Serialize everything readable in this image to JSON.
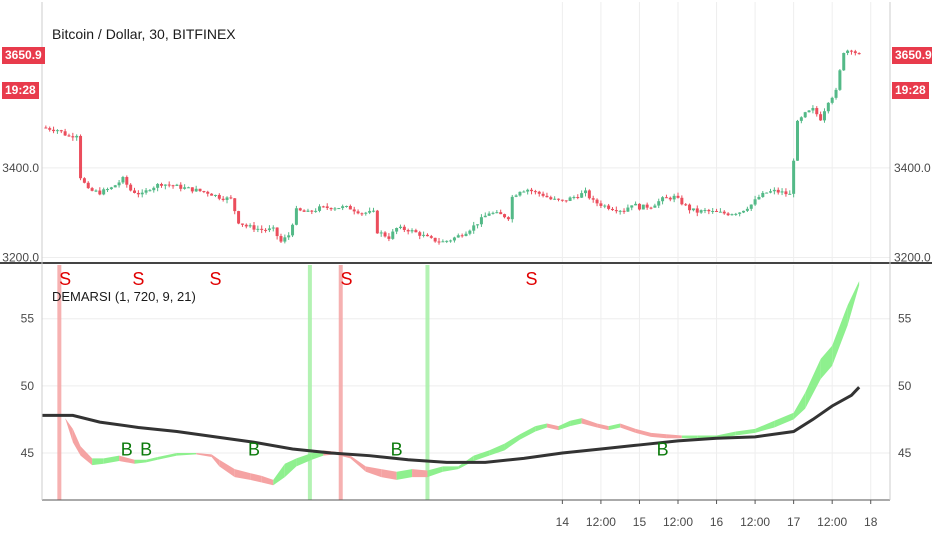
{
  "chart_data": [
    {
      "type": "candlestick",
      "title": "Bitcoin / Dollar, 30, BITFINEX",
      "y_ticks": [
        "3200.0",
        "3400.0"
      ],
      "ylim": [
        3190,
        3770
      ],
      "last_price": "3650.9",
      "countdown": "19:28",
      "x_ticks": [
        {
          "x": 13.5,
          "label": "14"
        },
        {
          "x": 14.5,
          "label": "12:00"
        },
        {
          "x": 15.5,
          "label": "15"
        },
        {
          "x": 16.5,
          "label": "12:00"
        },
        {
          "x": 17.5,
          "label": "16"
        },
        {
          "x": 18.5,
          "label": "12:00"
        },
        {
          "x": 19.5,
          "label": "17"
        },
        {
          "x": 20.5,
          "label": "12:00"
        },
        {
          "x": 21.5,
          "label": "18"
        }
      ],
      "close_path": [
        [
          0.0,
          3490
        ],
        [
          0.4,
          3485
        ],
        [
          0.7,
          3470
        ],
        [
          0.9,
          3475
        ],
        [
          1.0,
          3380
        ],
        [
          1.2,
          3350
        ],
        [
          1.5,
          3345
        ],
        [
          1.8,
          3355
        ],
        [
          2.1,
          3375
        ],
        [
          2.3,
          3350
        ],
        [
          2.6,
          3340
        ],
        [
          2.8,
          3355
        ],
        [
          3.1,
          3365
        ],
        [
          3.4,
          3360
        ],
        [
          3.7,
          3355
        ],
        [
          4.0,
          3350
        ],
        [
          4.3,
          3345
        ],
        [
          4.6,
          3335
        ],
        [
          4.9,
          3330
        ],
        [
          5.1,
          3280
        ],
        [
          5.3,
          3270
        ],
        [
          5.7,
          3262
        ],
        [
          6.0,
          3262
        ],
        [
          6.2,
          3235
        ],
        [
          6.4,
          3250
        ],
        [
          6.6,
          3305
        ],
        [
          6.9,
          3300
        ],
        [
          7.2,
          3310
        ],
        [
          7.5,
          3312
        ],
        [
          7.8,
          3312
        ],
        [
          8.0,
          3310
        ],
        [
          8.3,
          3300
        ],
        [
          8.6,
          3300
        ],
        [
          8.7,
          3258
        ],
        [
          9.0,
          3245
        ],
        [
          9.2,
          3265
        ],
        [
          9.5,
          3262
        ],
        [
          9.8,
          3252
        ],
        [
          10.1,
          3240
        ],
        [
          10.4,
          3235
        ],
        [
          10.6,
          3240
        ],
        [
          10.8,
          3248
        ],
        [
          11.0,
          3258
        ],
        [
          11.2,
          3270
        ],
        [
          11.4,
          3285
        ],
        [
          11.6,
          3300
        ],
        [
          11.9,
          3295
        ],
        [
          12.1,
          3290
        ],
        [
          12.2,
          3335
        ],
        [
          12.4,
          3350
        ],
        [
          12.6,
          3352
        ],
        [
          12.8,
          3345
        ],
        [
          13.0,
          3340
        ],
        [
          13.2,
          3330
        ],
        [
          13.5,
          3325
        ],
        [
          13.8,
          3335
        ],
        [
          14.1,
          3345
        ],
        [
          14.3,
          3325
        ],
        [
          14.6,
          3315
        ],
        [
          14.8,
          3310
        ],
        [
          15.1,
          3305
        ],
        [
          15.3,
          3320
        ],
        [
          15.5,
          3312
        ],
        [
          15.8,
          3315
        ],
        [
          16.1,
          3330
        ],
        [
          16.4,
          3335
        ],
        [
          16.6,
          3322
        ],
        [
          16.8,
          3308
        ],
        [
          17.0,
          3302
        ],
        [
          17.2,
          3304
        ],
        [
          17.5,
          3300
        ],
        [
          17.8,
          3298
        ],
        [
          18.1,
          3302
        ],
        [
          18.4,
          3318
        ],
        [
          18.6,
          3335
        ],
        [
          18.8,
          3345
        ],
        [
          19.0,
          3348
        ],
        [
          19.2,
          3345
        ],
        [
          19.4,
          3340
        ],
        [
          19.6,
          3500
        ],
        [
          19.8,
          3520
        ],
        [
          20.0,
          3530
        ],
        [
          20.2,
          3510
        ],
        [
          20.4,
          3550
        ],
        [
          20.6,
          3570
        ],
        [
          20.8,
          3660
        ],
        [
          21.0,
          3665
        ],
        [
          21.2,
          3650
        ]
      ]
    },
    {
      "type": "line",
      "title": "DEMARSI (1, 720, 9, 21)",
      "y_ticks": [
        "45",
        "50",
        "55"
      ],
      "ylim": [
        41.5,
        59
      ],
      "baseline": [
        [
          0.0,
          47.8
        ],
        [
          0.8,
          47.8
        ],
        [
          1.5,
          47.3
        ],
        [
          2.5,
          46.9
        ],
        [
          3.5,
          46.6
        ],
        [
          4.5,
          46.2
        ],
        [
          5.5,
          45.8
        ],
        [
          6.5,
          45.3
        ],
        [
          7.5,
          45.0
        ],
        [
          8.5,
          44.8
        ],
        [
          9.5,
          44.5
        ],
        [
          10.5,
          44.3
        ],
        [
          11.5,
          44.3
        ],
        [
          12.5,
          44.6
        ],
        [
          13.5,
          45.0
        ],
        [
          14.5,
          45.3
        ],
        [
          15.5,
          45.6
        ],
        [
          16.5,
          45.9
        ],
        [
          17.5,
          46.1
        ],
        [
          18.5,
          46.2
        ],
        [
          19.5,
          46.6
        ],
        [
          20.0,
          47.5
        ],
        [
          20.5,
          48.5
        ],
        [
          21.0,
          49.3
        ],
        [
          21.2,
          49.9
        ]
      ],
      "band_upper": [
        [
          0.0,
          47.7
        ],
        [
          0.6,
          47.6
        ],
        [
          0.8,
          46.8
        ],
        [
          1.0,
          45.5
        ],
        [
          1.3,
          44.6
        ],
        [
          1.6,
          44.6
        ],
        [
          2.0,
          44.8
        ],
        [
          2.4,
          44.5
        ],
        [
          2.7,
          44.5
        ],
        [
          3.0,
          44.7
        ],
        [
          3.5,
          45.0
        ],
        [
          4.0,
          45.0
        ],
        [
          4.4,
          44.9
        ],
        [
          4.6,
          44.5
        ],
        [
          5.0,
          43.8
        ],
        [
          5.4,
          43.5
        ],
        [
          5.7,
          43.3
        ],
        [
          6.0,
          43.0
        ],
        [
          6.3,
          44.2
        ],
        [
          6.6,
          44.6
        ],
        [
          7.0,
          45.0
        ],
        [
          7.3,
          45.2
        ],
        [
          7.6,
          45.1
        ],
        [
          8.0,
          44.8
        ],
        [
          8.4,
          44.0
        ],
        [
          8.8,
          43.8
        ],
        [
          9.2,
          43.6
        ],
        [
          9.6,
          43.8
        ],
        [
          10.0,
          43.7
        ],
        [
          10.4,
          44.0
        ],
        [
          10.8,
          44.0
        ],
        [
          11.2,
          44.8
        ],
        [
          11.6,
          45.2
        ],
        [
          12.0,
          45.7
        ],
        [
          12.4,
          46.4
        ],
        [
          12.8,
          47.0
        ],
        [
          13.1,
          47.2
        ],
        [
          13.4,
          47.0
        ],
        [
          13.7,
          47.4
        ],
        [
          14.0,
          47.6
        ],
        [
          14.4,
          47.2
        ],
        [
          14.7,
          47.0
        ],
        [
          15.0,
          47.2
        ],
        [
          15.4,
          46.8
        ],
        [
          15.8,
          46.5
        ],
        [
          16.2,
          46.4
        ],
        [
          16.6,
          46.3
        ],
        [
          17.0,
          46.3
        ],
        [
          17.5,
          46.3
        ],
        [
          18.0,
          46.6
        ],
        [
          18.5,
          46.8
        ],
        [
          19.0,
          47.4
        ],
        [
          19.5,
          48.0
        ],
        [
          19.8,
          49.5
        ],
        [
          20.2,
          52.0
        ],
        [
          20.5,
          53.0
        ],
        [
          20.9,
          56.0
        ],
        [
          21.2,
          57.8
        ]
      ],
      "band_lower": [
        [
          0.0,
          47.7
        ],
        [
          0.6,
          47.6
        ],
        [
          0.8,
          45.8
        ],
        [
          1.0,
          44.8
        ],
        [
          1.3,
          44.1
        ],
        [
          1.6,
          44.2
        ],
        [
          2.0,
          44.4
        ],
        [
          2.4,
          44.2
        ],
        [
          2.7,
          44.3
        ],
        [
          3.0,
          44.5
        ],
        [
          3.5,
          44.8
        ],
        [
          4.0,
          44.9
        ],
        [
          4.4,
          44.7
        ],
        [
          4.6,
          44.0
        ],
        [
          5.0,
          43.2
        ],
        [
          5.4,
          43.0
        ],
        [
          5.7,
          42.8
        ],
        [
          6.0,
          42.6
        ],
        [
          6.3,
          43.2
        ],
        [
          6.6,
          44.0
        ],
        [
          7.0,
          44.5
        ],
        [
          7.3,
          44.8
        ],
        [
          7.6,
          44.9
        ],
        [
          8.0,
          44.6
        ],
        [
          8.4,
          43.6
        ],
        [
          8.8,
          43.2
        ],
        [
          9.2,
          43.0
        ],
        [
          9.6,
          43.2
        ],
        [
          10.0,
          43.2
        ],
        [
          10.4,
          43.6
        ],
        [
          10.8,
          43.8
        ],
        [
          11.2,
          44.4
        ],
        [
          11.6,
          44.8
        ],
        [
          12.0,
          45.2
        ],
        [
          12.4,
          46.0
        ],
        [
          12.8,
          46.6
        ],
        [
          13.1,
          46.9
        ],
        [
          13.4,
          46.7
        ],
        [
          13.7,
          47.0
        ],
        [
          14.0,
          47.2
        ],
        [
          14.4,
          46.9
        ],
        [
          14.7,
          46.7
        ],
        [
          15.0,
          46.9
        ],
        [
          15.4,
          46.5
        ],
        [
          15.8,
          46.2
        ],
        [
          16.2,
          46.1
        ],
        [
          16.6,
          46.1
        ],
        [
          17.0,
          46.1
        ],
        [
          17.5,
          46.1
        ],
        [
          18.0,
          46.3
        ],
        [
          18.5,
          46.5
        ],
        [
          19.0,
          46.9
        ],
        [
          19.5,
          47.5
        ],
        [
          19.8,
          48.3
        ],
        [
          20.2,
          50.5
        ],
        [
          20.5,
          51.5
        ],
        [
          20.9,
          54.5
        ],
        [
          21.2,
          57.5
        ]
      ],
      "band_colors": {
        "bull": "#8ef08e",
        "bear": "#f5a3a3"
      },
      "baseline_color": "#333333",
      "signals": [
        {
          "label": "S",
          "x": 0.6,
          "y": 57.5
        },
        {
          "label": "S",
          "x": 2.5,
          "y": 57.5
        },
        {
          "label": "S",
          "x": 4.5,
          "y": 57.5
        },
        {
          "label": "S",
          "x": 7.9,
          "y": 57.5
        },
        {
          "label": "S",
          "x": 12.7,
          "y": 57.5
        },
        {
          "label": "B",
          "x": 2.2,
          "y": 44.8
        },
        {
          "label": "B",
          "x": 2.7,
          "y": 44.8
        },
        {
          "label": "B",
          "x": 5.5,
          "y": 44.8
        },
        {
          "label": "B",
          "x": 9.2,
          "y": 44.8
        },
        {
          "label": "B",
          "x": 16.1,
          "y": 44.8
        }
      ],
      "vlines": [
        {
          "x": 0.45,
          "color": "#f5a3a3"
        },
        {
          "x": 6.95,
          "color": "#a6f0a6"
        },
        {
          "x": 7.75,
          "color": "#f5a3a3"
        },
        {
          "x": 10.0,
          "color": "#a6f0a6"
        }
      ]
    }
  ]
}
